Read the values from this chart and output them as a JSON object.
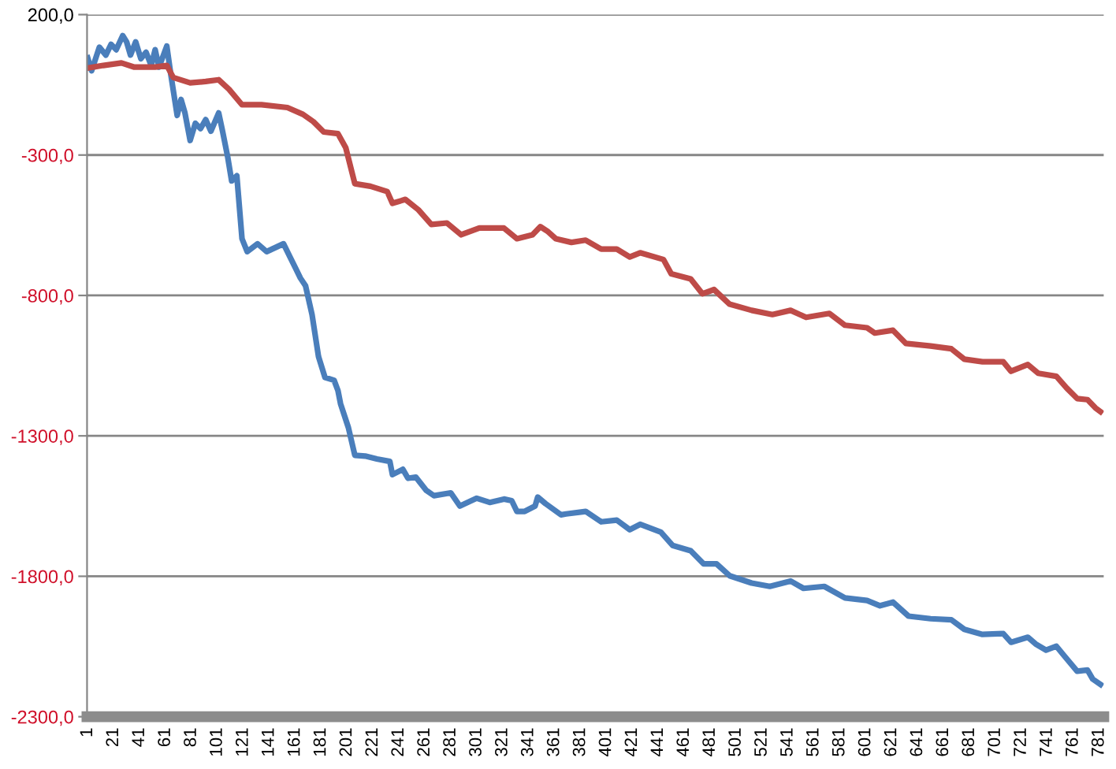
{
  "chart_data": {
    "type": "line",
    "xlim": [
      0.5,
      784.5
    ],
    "xticks": [
      1,
      21,
      41,
      61,
      81,
      101,
      121,
      141,
      161,
      181,
      201,
      221,
      241,
      261,
      281,
      301,
      321,
      341,
      361,
      381,
      401,
      421,
      441,
      461,
      481,
      501,
      521,
      541,
      561,
      581,
      601,
      621,
      641,
      661,
      681,
      701,
      721,
      741,
      761,
      781
    ],
    "ylim": [
      -2300,
      200
    ],
    "yticks": [
      {
        "value": 200,
        "label": "200,0"
      },
      {
        "value": -300,
        "label": "-300,0"
      },
      {
        "value": -800,
        "label": "-800,0"
      },
      {
        "value": -1300,
        "label": "-1300,0"
      },
      {
        "value": -1800,
        "label": "-1800,0"
      },
      {
        "value": -2300,
        "label": "-2300,0"
      }
    ],
    "grid": "y",
    "marker": "none",
    "line_style": "solid",
    "series": [
      {
        "color": "#4a7ebb",
        "x": [
          1,
          4,
          10,
          15,
          19,
          23,
          28,
          31,
          34,
          38,
          42,
          46,
          50,
          53,
          56,
          62,
          65,
          70,
          73,
          76,
          80,
          84,
          88,
          92,
          96,
          102,
          105,
          109,
          112,
          116,
          120,
          124,
          132,
          139,
          152,
          157,
          161,
          165,
          169,
          174,
          179,
          184,
          191,
          194,
          196,
          202,
          207,
          215,
          224,
          234,
          236,
          244,
          248,
          254,
          262,
          268,
          281,
          288,
          301,
          311,
          322,
          328,
          332,
          338,
          346,
          348,
          354,
          366,
          370,
          385,
          397,
          409,
          419,
          427,
          443,
          452,
          466,
          476,
          486,
          496,
          513,
          527,
          543,
          553,
          569,
          585,
          602,
          612,
          622,
          634,
          651,
          667,
          677,
          691,
          707,
          713,
          726,
          732,
          740,
          748,
          754,
          764,
          772,
          776,
          782
        ],
        "values": [
          46,
          0,
          84,
          56,
          94,
          75,
          125,
          103,
          56,
          103,
          43,
          66,
          19,
          75,
          13,
          88,
          -10,
          -159,
          -102,
          -150,
          -248,
          -187,
          -206,
          -174,
          -215,
          -150,
          -215,
          -308,
          -392,
          -374,
          -598,
          -644,
          -616,
          -644,
          -616,
          -663,
          -700,
          -738,
          -766,
          -868,
          -1018,
          -1092,
          -1102,
          -1139,
          -1186,
          -1270,
          -1369,
          -1372,
          -1382,
          -1391,
          -1438,
          -1419,
          -1451,
          -1447,
          -1494,
          -1513,
          -1503,
          -1550,
          -1522,
          -1537,
          -1525,
          -1531,
          -1569,
          -1569,
          -1550,
          -1518,
          -1541,
          -1581,
          -1578,
          -1569,
          -1606,
          -1600,
          -1634,
          -1615,
          -1643,
          -1690,
          -1709,
          -1756,
          -1756,
          -1798,
          -1824,
          -1836,
          -1817,
          -1843,
          -1836,
          -1877,
          -1886,
          -1905,
          -1892,
          -1942,
          -1951,
          -1955,
          -1989,
          -2007,
          -2004,
          -2035,
          -2017,
          -2041,
          -2063,
          -2049,
          -2083,
          -2138,
          -2134,
          -2166,
          -2185
        ]
      },
      {
        "color": "#be4b48",
        "x": [
          1,
          13,
          27,
          37,
          53,
          62,
          67,
          80,
          92,
          102,
          110,
          120,
          135,
          155,
          167,
          175,
          183,
          194,
          200,
          207,
          219,
          232,
          236,
          246,
          256,
          266,
          278,
          289,
          303,
          322,
          332,
          344,
          350,
          356,
          362,
          374,
          385,
          397,
          409,
          419,
          427,
          445,
          451,
          466,
          475,
          484,
          496,
          513,
          529,
          543,
          555,
          573,
          585,
          602,
          608,
          622,
          632,
          651,
          667,
          677,
          691,
          707,
          713,
          726,
          734,
          748,
          756,
          764,
          772,
          778,
          782
        ],
        "values": [
          10,
          19,
          28,
          13,
          13,
          19,
          -24,
          -43,
          -38,
          -32,
          -66,
          -121,
          -121,
          -131,
          -155,
          -181,
          -218,
          -224,
          -274,
          -402,
          -411,
          -430,
          -472,
          -458,
          -495,
          -547,
          -542,
          -584,
          -560,
          -560,
          -598,
          -584,
          -555,
          -573,
          -598,
          -611,
          -603,
          -635,
          -635,
          -663,
          -648,
          -672,
          -723,
          -741,
          -794,
          -779,
          -831,
          -853,
          -868,
          -853,
          -878,
          -864,
          -906,
          -915,
          -934,
          -924,
          -971,
          -980,
          -990,
          -1027,
          -1036,
          -1036,
          -1070,
          -1046,
          -1077,
          -1088,
          -1130,
          -1167,
          -1171,
          -1200,
          -1214
        ]
      }
    ]
  }
}
